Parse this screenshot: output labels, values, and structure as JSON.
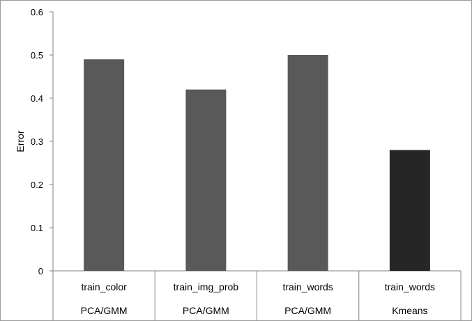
{
  "chart_data": {
    "type": "bar",
    "title": "",
    "xlabel": "",
    "ylabel": "Error",
    "ylim": [
      0,
      0.6
    ],
    "yticks": [
      "0",
      "0.1",
      "0.2",
      "0.3",
      "0.4",
      "0.5",
      "0.6"
    ],
    "categories": [
      "train_color",
      "train_img_prob",
      "train_words",
      "train_words"
    ],
    "groups": [
      "PCA/GMM",
      "PCA/GMM",
      "PCA/GMM",
      "Kmeans"
    ],
    "values": [
      0.49,
      0.42,
      0.5,
      0.28
    ],
    "colors": [
      "#595959",
      "#595959",
      "#595959",
      "#262626"
    ],
    "grid": false,
    "legend": "none"
  }
}
